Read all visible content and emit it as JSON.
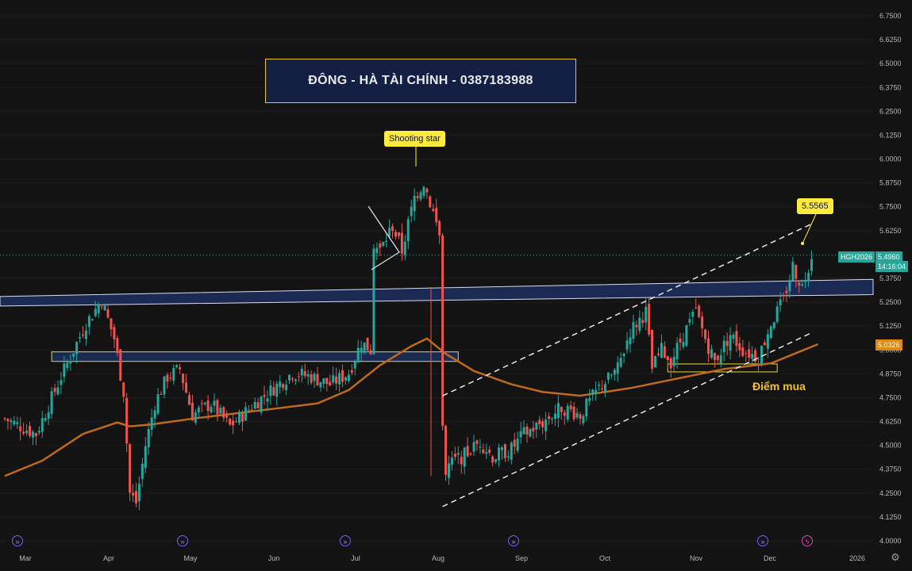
{
  "title_banner": "ĐÔNG - HÀ TÀI CHÍNH - 0387183988",
  "annotations": {
    "shooting_star": "Shooting star",
    "target_price": "5.5565",
    "buy_point": "Điểm mua"
  },
  "price_scale": {
    "symbol": "HGH2026",
    "last_price": "5.4960",
    "countdown": "14:16:04",
    "ma_price": "5.0326"
  },
  "colors": {
    "background": "#131313",
    "up": "#26a69a",
    "down": "#ef5350",
    "moving_average": "#c0691b",
    "zone_fill": "#1b2a52",
    "highlight": "#ffeb3b"
  },
  "icons": [
    "forward-icon",
    "flash-icon",
    "gear-icon"
  ],
  "chart_data": {
    "type": "candlestick",
    "y_axis": {
      "ylim": [
        4.0,
        6.75
      ],
      "ticks": [
        "6.7500",
        "6.6250",
        "6.5000",
        "6.3750",
        "6.2500",
        "6.1250",
        "6.0000",
        "5.8750",
        "5.7500",
        "5.6250",
        "5.5000",
        "5.3750",
        "5.2500",
        "5.1250",
        "5.0000",
        "4.8750",
        "4.7500",
        "4.6250",
        "4.5000",
        "4.3750",
        "4.2500",
        "4.1250",
        "4.0000"
      ]
    },
    "x_axis": {
      "ticks": [
        "Mar",
        "Apr",
        "May",
        "Jun",
        "Jul",
        "Aug",
        "Sep",
        "Oct",
        "Nov",
        "Dec",
        "2026"
      ]
    },
    "anchors": [
      {
        "t": 0,
        "p": 4.64
      },
      {
        "t": 10,
        "p": 4.56
      },
      {
        "t": 18,
        "p": 4.86
      },
      {
        "t": 26,
        "p": 5.14
      },
      {
        "t": 31,
        "p": 5.26
      },
      {
        "t": 35,
        "p": 5.06
      },
      {
        "t": 38,
        "p": 4.78
      },
      {
        "t": 40,
        "p": 4.25
      },
      {
        "t": 42,
        "p": 4.2
      },
      {
        "t": 45,
        "p": 4.5
      },
      {
        "t": 48,
        "p": 4.72
      },
      {
        "t": 52,
        "p": 4.86
      },
      {
        "t": 56,
        "p": 4.9
      },
      {
        "t": 60,
        "p": 4.66
      },
      {
        "t": 66,
        "p": 4.72
      },
      {
        "t": 72,
        "p": 4.6
      },
      {
        "t": 80,
        "p": 4.72
      },
      {
        "t": 86,
        "p": 4.8
      },
      {
        "t": 92,
        "p": 4.88
      },
      {
        "t": 98,
        "p": 4.86
      },
      {
        "t": 104,
        "p": 4.82
      },
      {
        "t": 110,
        "p": 4.88
      },
      {
        "t": 114,
        "p": 5.04
      },
      {
        "t": 117,
        "p": 5.0
      },
      {
        "t": 118,
        "p": 5.55
      },
      {
        "t": 120,
        "p": 5.52
      },
      {
        "t": 124,
        "p": 5.65
      },
      {
        "t": 127,
        "p": 5.52
      },
      {
        "t": 131,
        "p": 5.8
      },
      {
        "t": 134,
        "p": 5.88
      },
      {
        "t": 137,
        "p": 5.72
      },
      {
        "t": 139,
        "p": 5.6
      },
      {
        "t": 140,
        "p": 4.6
      },
      {
        "t": 141,
        "p": 4.38
      },
      {
        "t": 144,
        "p": 4.42
      },
      {
        "t": 148,
        "p": 4.46
      },
      {
        "t": 152,
        "p": 4.52
      },
      {
        "t": 156,
        "p": 4.44
      },
      {
        "t": 162,
        "p": 4.48
      },
      {
        "t": 166,
        "p": 4.56
      },
      {
        "t": 172,
        "p": 4.62
      },
      {
        "t": 178,
        "p": 4.7
      },
      {
        "t": 184,
        "p": 4.66
      },
      {
        "t": 190,
        "p": 4.8
      },
      {
        "t": 196,
        "p": 4.9
      },
      {
        "t": 200,
        "p": 5.1
      },
      {
        "t": 205,
        "p": 5.2
      },
      {
        "t": 207,
        "p": 4.9
      },
      {
        "t": 210,
        "p": 5.0
      },
      {
        "t": 213,
        "p": 4.94
      },
      {
        "t": 217,
        "p": 5.08
      },
      {
        "t": 221,
        "p": 5.2
      },
      {
        "t": 224,
        "p": 5.06
      },
      {
        "t": 227,
        "p": 4.94
      },
      {
        "t": 232,
        "p": 5.08
      },
      {
        "t": 236,
        "p": 5.0
      },
      {
        "t": 241,
        "p": 4.96
      },
      {
        "t": 245,
        "p": 5.14
      },
      {
        "t": 249,
        "p": 5.26
      },
      {
        "t": 252,
        "p": 5.44
      },
      {
        "t": 255,
        "p": 5.33
      },
      {
        "t": 258,
        "p": 5.5
      }
    ],
    "moving_average": [
      {
        "t": 0,
        "p": 4.34
      },
      {
        "t": 12,
        "p": 4.42
      },
      {
        "t": 25,
        "p": 4.56
      },
      {
        "t": 36,
        "p": 4.62
      },
      {
        "t": 40,
        "p": 4.6
      },
      {
        "t": 47,
        "p": 4.61
      },
      {
        "t": 60,
        "p": 4.64
      },
      {
        "t": 80,
        "p": 4.68
      },
      {
        "t": 100,
        "p": 4.72
      },
      {
        "t": 110,
        "p": 4.79
      },
      {
        "t": 120,
        "p": 4.92
      },
      {
        "t": 130,
        "p": 5.02
      },
      {
        "t": 135,
        "p": 5.06
      },
      {
        "t": 141,
        "p": 4.98
      },
      {
        "t": 150,
        "p": 4.89
      },
      {
        "t": 162,
        "p": 4.82
      },
      {
        "t": 172,
        "p": 4.78
      },
      {
        "t": 184,
        "p": 4.76
      },
      {
        "t": 200,
        "p": 4.8
      },
      {
        "t": 215,
        "p": 4.85
      },
      {
        "t": 230,
        "p": 4.9
      },
      {
        "t": 245,
        "p": 4.93
      },
      {
        "t": 260,
        "p": 5.03
      }
    ],
    "resistance_zone": {
      "from": [
        0,
        5.28,
        5.23
      ],
      "to": [
        275,
        5.37,
        5.29
      ]
    },
    "support_zone": {
      "t_range": [
        15,
        145
      ],
      "p_range": [
        4.94,
        4.99
      ]
    },
    "buy_zone": {
      "t_range": [
        212,
        247
      ],
      "p_range": [
        4.89,
        4.91
      ]
    },
    "channel_upper": {
      "t_range": [
        140,
        258
      ],
      "p_range": [
        4.76,
        5.66
      ]
    },
    "channel_lower": {
      "t_range": [
        140,
        258
      ],
      "p_range": [
        4.18,
        5.09
      ]
    },
    "target_price": 5.5565,
    "last_price": 5.496,
    "ma_last": 5.0326
  }
}
